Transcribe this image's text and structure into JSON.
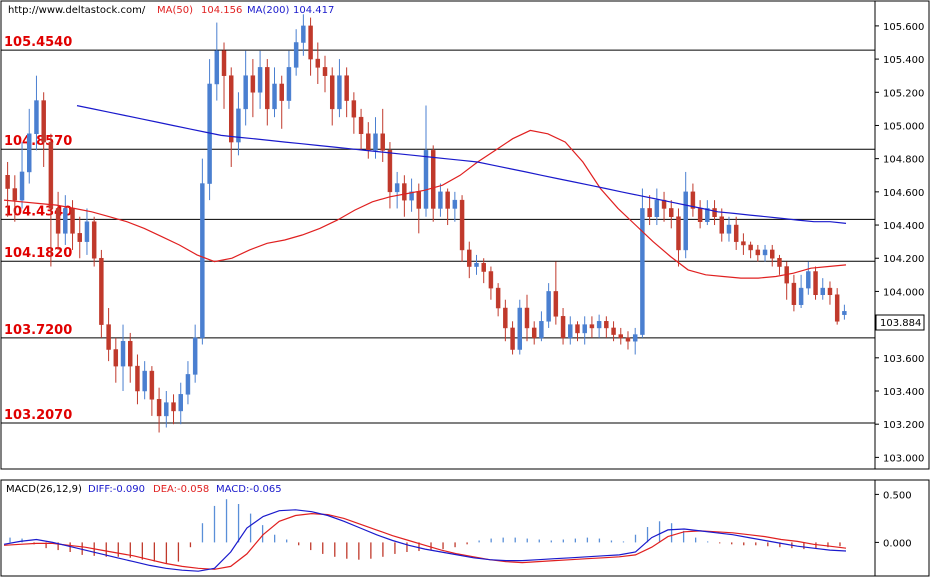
{
  "header": {
    "url": "http://www.deltastock.com/",
    "ma50_label": "MA(50)",
    "ma50_value": "104.156",
    "ma200_label": "MA(200)",
    "ma200_value": "104.417"
  },
  "macd_header": {
    "name": "MACD(26,12,9)",
    "diff": "DIFF:-0.090",
    "dea": "DEA:-0.058",
    "macd": "MACD:-0.065"
  },
  "price_badge": "103.884",
  "chart_data": [
    {
      "type": "candlestick",
      "ylim": [
        102.93,
        105.75
      ],
      "y_ticks": [
        "105.600",
        "105.400",
        "105.200",
        "105.000",
        "104.800",
        "104.600",
        "104.400",
        "104.200",
        "104.000",
        "103.800",
        "103.600",
        "103.400",
        "103.200",
        "103.000"
      ],
      "colors": {
        "up": "#4a7fd0",
        "down": "#c0392b",
        "ma50": "#e02020",
        "ma200": "#1a1acc",
        "level": "#e00000"
      },
      "levels": [
        "105.4540",
        "104.8570",
        "104.4340",
        "104.1820",
        "103.7200",
        "103.2070"
      ],
      "level_values": [
        105.454,
        104.857,
        104.434,
        104.182,
        103.72,
        103.207
      ],
      "candles": [
        [
          104.7,
          104.62,
          104.78,
          104.45
        ],
        [
          104.62,
          104.55,
          104.7,
          104.42
        ],
        [
          104.55,
          104.72,
          104.9,
          104.5
        ],
        [
          104.72,
          104.95,
          105.1,
          104.65
        ],
        [
          104.95,
          105.15,
          105.3,
          104.85
        ],
        [
          105.15,
          104.9,
          105.2,
          104.75
        ],
        [
          104.9,
          104.5,
          104.95,
          104.15
        ],
        [
          104.5,
          104.35,
          104.6,
          104.25
        ],
        [
          104.35,
          104.5,
          104.58,
          104.28
        ],
        [
          104.5,
          104.35,
          104.55,
          104.25
        ],
        [
          104.35,
          104.3,
          104.45,
          104.2
        ],
        [
          104.3,
          104.42,
          104.5,
          104.22
        ],
        [
          104.42,
          104.2,
          104.45,
          104.15
        ],
        [
          104.2,
          103.8,
          104.25,
          103.72
        ],
        [
          103.8,
          103.65,
          103.9,
          103.58
        ],
        [
          103.65,
          103.55,
          103.72,
          103.45
        ],
        [
          103.55,
          103.7,
          103.8,
          103.4
        ],
        [
          103.7,
          103.55,
          103.75,
          103.45
        ],
        [
          103.55,
          103.4,
          103.62,
          103.32
        ],
        [
          103.4,
          103.52,
          103.58,
          103.35
        ],
        [
          103.52,
          103.35,
          103.55,
          103.25
        ],
        [
          103.35,
          103.25,
          103.42,
          103.15
        ],
        [
          103.25,
          103.33,
          103.4,
          103.18
        ],
        [
          103.33,
          103.28,
          103.38,
          103.2
        ],
        [
          103.28,
          103.38,
          103.45,
          103.2
        ],
        [
          103.38,
          103.5,
          103.58,
          103.32
        ],
        [
          103.5,
          103.72,
          103.8,
          103.45
        ],
        [
          103.72,
          104.65,
          104.8,
          103.68
        ],
        [
          104.65,
          105.25,
          105.4,
          104.55
        ],
        [
          105.25,
          105.45,
          105.62,
          105.15
        ],
        [
          105.45,
          105.3,
          105.5,
          105.1
        ],
        [
          105.3,
          104.9,
          105.35,
          104.75
        ],
        [
          104.9,
          105.1,
          105.2,
          104.82
        ],
        [
          105.1,
          105.3,
          105.45,
          105.0
        ],
        [
          105.3,
          105.2,
          105.4,
          105.05
        ],
        [
          105.2,
          105.35,
          105.45,
          105.1
        ],
        [
          105.35,
          105.1,
          105.4,
          105.0
        ],
        [
          105.1,
          105.25,
          105.35,
          105.05
        ],
        [
          105.25,
          105.15,
          105.3,
          104.98
        ],
        [
          105.15,
          105.35,
          105.45,
          105.1
        ],
        [
          105.35,
          105.5,
          105.58,
          105.3
        ],
        [
          105.5,
          105.6,
          105.67,
          105.42
        ],
        [
          105.6,
          105.4,
          105.65,
          105.3
        ],
        [
          105.4,
          105.35,
          105.5,
          105.25
        ],
        [
          105.35,
          105.3,
          105.42,
          105.2
        ],
        [
          105.3,
          105.1,
          105.35,
          105.0
        ],
        [
          105.1,
          105.3,
          105.4,
          105.05
        ],
        [
          105.3,
          105.15,
          105.35,
          105.05
        ],
        [
          105.15,
          105.05,
          105.2,
          104.95
        ],
        [
          105.05,
          104.95,
          105.1,
          104.85
        ],
        [
          104.95,
          104.85,
          105.02,
          104.8
        ],
        [
          104.85,
          104.95,
          105.05,
          104.8
        ],
        [
          104.95,
          104.85,
          105.1,
          104.78
        ],
        [
          104.85,
          104.6,
          104.9,
          104.5
        ],
        [
          104.6,
          104.65,
          104.72,
          104.5
        ],
        [
          104.65,
          104.55,
          104.7,
          104.45
        ],
        [
          104.55,
          104.6,
          104.68,
          104.48
        ],
        [
          104.6,
          104.5,
          104.65,
          104.35
        ],
        [
          104.5,
          104.85,
          105.12,
          104.45
        ],
        [
          104.85,
          104.5,
          104.88,
          104.42
        ],
        [
          104.5,
          104.6,
          104.65,
          104.45
        ],
        [
          104.6,
          104.5,
          104.62,
          104.4
        ],
        [
          104.5,
          104.55,
          104.6,
          104.42
        ],
        [
          104.55,
          104.25,
          104.58,
          104.18
        ],
        [
          104.25,
          104.15,
          104.3,
          104.08
        ],
        [
          104.15,
          104.17,
          104.22,
          104.1
        ],
        [
          104.17,
          104.12,
          104.2,
          104.05
        ],
        [
          104.12,
          104.02,
          104.15,
          103.95
        ],
        [
          104.02,
          103.9,
          104.05,
          103.85
        ],
        [
          103.9,
          103.78,
          103.95,
          103.7
        ],
        [
          103.78,
          103.65,
          103.82,
          103.62
        ],
        [
          103.65,
          103.9,
          103.95,
          103.62
        ],
        [
          103.9,
          103.78,
          103.98,
          103.7
        ],
        [
          103.78,
          103.72,
          103.82,
          103.68
        ],
        [
          103.72,
          103.82,
          103.88,
          103.7
        ],
        [
          103.82,
          104.0,
          104.05,
          103.78
        ],
        [
          104.0,
          103.85,
          104.18,
          103.8
        ],
        [
          103.85,
          103.72,
          103.9,
          103.68
        ],
        [
          103.72,
          103.8,
          103.85,
          103.68
        ],
        [
          103.8,
          103.75,
          103.82,
          103.7
        ],
        [
          103.75,
          103.8,
          103.85,
          103.68
        ],
        [
          103.8,
          103.78,
          103.85,
          103.72
        ],
        [
          103.78,
          103.82,
          103.86,
          103.72
        ],
        [
          103.82,
          103.78,
          103.85,
          103.72
        ],
        [
          103.78,
          103.74,
          103.82,
          103.7
        ],
        [
          103.74,
          103.72,
          103.78,
          103.68
        ],
        [
          103.72,
          103.7,
          103.76,
          103.65
        ],
        [
          103.7,
          103.74,
          103.78,
          103.62
        ],
        [
          103.74,
          104.5,
          104.62,
          103.72
        ],
        [
          104.5,
          104.45,
          104.58,
          104.4
        ],
        [
          104.45,
          104.55,
          104.62,
          104.4
        ],
        [
          104.55,
          104.5,
          104.6,
          104.42
        ],
        [
          104.5,
          104.45,
          104.55,
          104.38
        ],
        [
          104.45,
          104.25,
          104.5,
          104.15
        ],
        [
          104.25,
          104.6,
          104.72,
          104.2
        ],
        [
          104.6,
          104.5,
          104.65,
          104.45
        ],
        [
          104.5,
          104.42,
          104.55,
          104.38
        ],
        [
          104.42,
          104.5,
          104.55,
          104.4
        ],
        [
          104.5,
          104.45,
          104.55,
          104.4
        ],
        [
          104.45,
          104.35,
          104.5,
          104.3
        ],
        [
          104.35,
          104.4,
          104.45,
          104.3
        ],
        [
          104.4,
          104.3,
          104.45,
          104.25
        ],
        [
          104.3,
          104.28,
          104.35,
          104.22
        ],
        [
          104.28,
          104.25,
          104.3,
          104.2
        ],
        [
          104.25,
          104.22,
          104.28,
          104.18
        ],
        [
          104.22,
          104.25,
          104.28,
          104.18
        ],
        [
          104.25,
          104.2,
          104.28,
          104.15
        ],
        [
          104.2,
          104.15,
          104.22,
          104.1
        ],
        [
          104.15,
          104.05,
          104.18,
          103.95
        ],
        [
          104.05,
          103.92,
          104.1,
          103.88
        ],
        [
          103.92,
          104.02,
          104.1,
          103.9
        ],
        [
          104.02,
          104.12,
          104.18,
          103.98
        ],
        [
          104.12,
          103.98,
          104.15,
          103.95
        ],
        [
          103.98,
          104.02,
          104.08,
          103.95
        ],
        [
          104.02,
          103.98,
          104.06,
          103.92
        ],
        [
          103.98,
          103.82,
          104.02,
          103.8
        ],
        [
          103.86,
          103.88,
          103.92,
          103.83
        ]
      ],
      "ma50": [
        104.55,
        104.54,
        104.53,
        104.52,
        104.5,
        104.48,
        104.45,
        104.42,
        104.38,
        104.33,
        104.28,
        104.22,
        104.18,
        104.2,
        104.25,
        104.29,
        104.31,
        104.34,
        104.38,
        104.43,
        104.49,
        104.54,
        104.57,
        104.59,
        104.61,
        104.64,
        104.7,
        104.78,
        104.85,
        104.92,
        104.97,
        104.95,
        104.9,
        104.78,
        104.62,
        104.5,
        104.4,
        104.3,
        104.21,
        104.13,
        104.1,
        104.09,
        104.08,
        104.08,
        104.09,
        104.11,
        104.14,
        104.15,
        104.16
      ],
      "ma200": [
        105.12,
        105.1,
        105.08,
        105.06,
        105.04,
        105.02,
        105.0,
        104.98,
        104.96,
        104.94,
        104.93,
        104.92,
        104.91,
        104.9,
        104.89,
        104.88,
        104.87,
        104.86,
        104.85,
        104.84,
        104.83,
        104.82,
        104.81,
        104.8,
        104.79,
        104.78,
        104.76,
        104.74,
        104.72,
        104.7,
        104.68,
        104.66,
        104.64,
        104.62,
        104.6,
        104.58,
        104.56,
        104.54,
        104.52,
        104.5,
        104.48,
        104.47,
        104.46,
        104.45,
        104.44,
        104.43,
        104.42,
        104.42,
        104.41
      ]
    },
    {
      "type": "macd",
      "ylim": [
        -0.35,
        0.65
      ],
      "y_ticks": [
        "0.500",
        "0.000"
      ],
      "colors": {
        "diff": "#1a1acc",
        "dea": "#e02020",
        "hist_pos": "#5a8fd8",
        "hist_neg": "#c0392b"
      },
      "diff": [
        -0.02,
        0.01,
        0.03,
        0.0,
        -0.04,
        -0.08,
        -0.12,
        -0.16,
        -0.2,
        -0.24,
        -0.27,
        -0.29,
        -0.3,
        -0.27,
        -0.1,
        0.15,
        0.27,
        0.33,
        0.34,
        0.32,
        0.28,
        0.22,
        0.15,
        0.08,
        0.02,
        -0.03,
        -0.07,
        -0.1,
        -0.13,
        -0.16,
        -0.18,
        -0.19,
        -0.19,
        -0.18,
        -0.17,
        -0.16,
        -0.15,
        -0.14,
        -0.13,
        -0.1,
        0.05,
        0.13,
        0.14,
        0.12,
        0.1,
        0.08,
        0.05,
        0.02,
        -0.01,
        -0.04,
        -0.06,
        -0.08,
        -0.09
      ],
      "dea": [
        -0.03,
        -0.02,
        -0.01,
        -0.01,
        -0.03,
        -0.05,
        -0.08,
        -0.11,
        -0.14,
        -0.18,
        -0.22,
        -0.25,
        -0.27,
        -0.28,
        -0.25,
        -0.12,
        0.08,
        0.22,
        0.28,
        0.3,
        0.29,
        0.25,
        0.19,
        0.13,
        0.07,
        0.02,
        -0.03,
        -0.08,
        -0.12,
        -0.15,
        -0.18,
        -0.2,
        -0.21,
        -0.2,
        -0.19,
        -0.18,
        -0.17,
        -0.16,
        -0.15,
        -0.13,
        -0.05,
        0.06,
        0.11,
        0.12,
        0.11,
        0.1,
        0.08,
        0.06,
        0.03,
        0.01,
        -0.02,
        -0.04,
        -0.06
      ],
      "hist": [
        0.05,
        0.04,
        -0.02,
        -0.06,
        -0.08,
        -0.1,
        -0.13,
        -0.14,
        -0.15,
        -0.15,
        -0.16,
        -0.18,
        -0.2,
        -0.22,
        -0.2,
        -0.05,
        0.2,
        0.38,
        0.45,
        0.4,
        0.3,
        0.18,
        0.08,
        0.03,
        -0.03,
        -0.08,
        -0.12,
        -0.15,
        -0.17,
        -0.18,
        -0.17,
        -0.15,
        -0.12,
        -0.1,
        -0.09,
        -0.08,
        -0.07,
        -0.05,
        -0.02,
        0.02,
        0.04,
        0.05,
        0.05,
        0.04,
        0.03,
        0.02,
        0.03,
        0.04,
        0.05,
        0.04,
        0.02,
        0.01,
        0.08,
        0.16,
        0.22,
        0.2,
        0.12,
        0.05,
        0.01,
        -0.01,
        -0.02,
        -0.03,
        -0.03,
        -0.04,
        -0.05,
        -0.06,
        -0.07,
        -0.06,
        -0.05,
        -0.04
      ]
    }
  ]
}
